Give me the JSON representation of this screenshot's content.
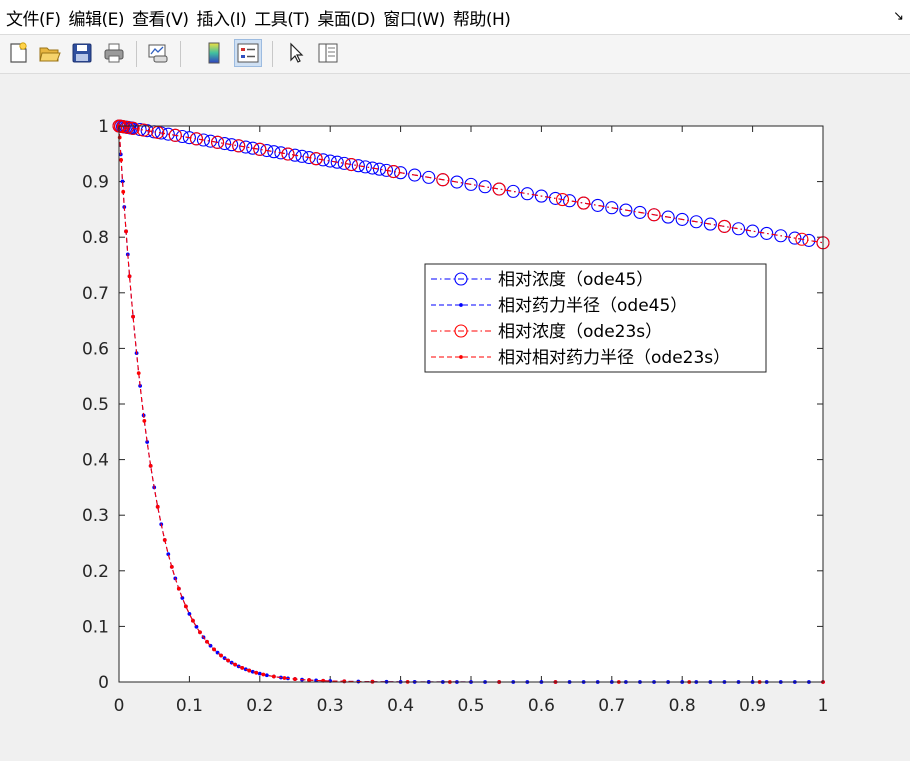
{
  "menu": {
    "items": [
      {
        "id": "file",
        "label": "文件(F)"
      },
      {
        "id": "edit",
        "label": "编辑(E)"
      },
      {
        "id": "view",
        "label": "查看(V)"
      },
      {
        "id": "insert",
        "label": "插入(I)"
      },
      {
        "id": "tools",
        "label": "工具(T)"
      },
      {
        "id": "desktop",
        "label": "桌面(D)"
      },
      {
        "id": "window",
        "label": "窗口(W)"
      },
      {
        "id": "help",
        "label": "帮助(H)"
      }
    ],
    "dock_arrow": "↘"
  },
  "toolbar": {
    "buttons": [
      {
        "name": "new-figure",
        "icon": "new-file-icon"
      },
      {
        "name": "open-file",
        "icon": "open-folder-icon"
      },
      {
        "name": "save",
        "icon": "save-disk-icon"
      },
      {
        "name": "print",
        "icon": "printer-icon"
      },
      {
        "name": "link-plot",
        "icon": "link-plot-icon"
      },
      {
        "name": "colorbar",
        "icon": "colorbar-icon"
      },
      {
        "name": "legend",
        "icon": "legend-icon",
        "active": true
      },
      {
        "name": "edit-plot",
        "icon": "pointer-arrow-icon"
      },
      {
        "name": "property-inspector",
        "icon": "property-panel-icon"
      }
    ]
  },
  "chart_data": {
    "type": "line",
    "title": "",
    "xlabel": "",
    "ylabel": "",
    "xlim": [
      0,
      1
    ],
    "ylim": [
      0,
      1
    ],
    "xticks": [
      "0",
      "0.1",
      "0.2",
      "0.3",
      "0.4",
      "0.5",
      "0.6",
      "0.7",
      "0.8",
      "0.9",
      "1"
    ],
    "yticks": [
      "0",
      "0.1",
      "0.2",
      "0.3",
      "0.4",
      "0.5",
      "0.6",
      "0.7",
      "0.8",
      "0.9",
      "1"
    ],
    "legend_position": "center-right",
    "series": [
      {
        "name": "相对浓度（ode45）",
        "color": "#0000ff",
        "line": "dash-dot",
        "marker": "circle",
        "function": "concentration",
        "x": [
          0,
          0.0025,
          0.005,
          0.0075,
          0.01,
          0.0125,
          0.015,
          0.0175,
          0.02,
          0.03,
          0.04,
          0.05,
          0.06,
          0.07,
          0.08,
          0.09,
          0.1,
          0.11,
          0.12,
          0.13,
          0.14,
          0.15,
          0.16,
          0.17,
          0.18,
          0.19,
          0.2,
          0.21,
          0.22,
          0.23,
          0.24,
          0.25,
          0.26,
          0.27,
          0.28,
          0.29,
          0.3,
          0.31,
          0.32,
          0.33,
          0.34,
          0.35,
          0.36,
          0.37,
          0.38,
          0.39,
          0.4,
          0.42,
          0.44,
          0.46,
          0.48,
          0.5,
          0.52,
          0.54,
          0.56,
          0.58,
          0.6,
          0.62,
          0.64,
          0.66,
          0.68,
          0.7,
          0.72,
          0.74,
          0.76,
          0.78,
          0.8,
          0.82,
          0.84,
          0.86,
          0.88,
          0.9,
          0.92,
          0.94,
          0.96,
          0.98,
          1.0
        ]
      },
      {
        "name": "相对药力半径（ode45）",
        "color": "#0000ff",
        "line": "dashed",
        "marker": "point",
        "function": "radius",
        "x": [
          0,
          0.0025,
          0.005,
          0.0075,
          0.01,
          0.0125,
          0.015,
          0.02,
          0.025,
          0.03,
          0.035,
          0.04,
          0.045,
          0.05,
          0.055,
          0.06,
          0.065,
          0.07,
          0.075,
          0.08,
          0.085,
          0.09,
          0.095,
          0.1,
          0.105,
          0.11,
          0.115,
          0.12,
          0.125,
          0.13,
          0.135,
          0.14,
          0.145,
          0.15,
          0.155,
          0.16,
          0.165,
          0.17,
          0.175,
          0.18,
          0.185,
          0.19,
          0.195,
          0.2,
          0.21,
          0.22,
          0.23,
          0.24,
          0.25,
          0.26,
          0.27,
          0.28,
          0.29,
          0.3,
          0.32,
          0.34,
          0.36,
          0.38,
          0.4,
          0.42,
          0.44,
          0.46,
          0.48,
          0.5,
          0.52,
          0.54,
          0.56,
          0.58,
          0.6,
          0.62,
          0.64,
          0.66,
          0.68,
          0.7,
          0.72,
          0.74,
          0.76,
          0.78,
          0.8,
          0.82,
          0.84,
          0.86,
          0.88,
          0.9,
          0.92,
          0.94,
          0.96,
          0.98,
          1.0
        ]
      },
      {
        "name": "相对浓度（ode23s）",
        "color": "#ff0000",
        "line": "dash-dot",
        "marker": "circle",
        "function": "concentration",
        "x": [
          0,
          0.002,
          0.006,
          0.012,
          0.02,
          0.035,
          0.055,
          0.08,
          0.11,
          0.14,
          0.17,
          0.2,
          0.24,
          0.28,
          0.33,
          0.39,
          0.46,
          0.54,
          0.63,
          0.66,
          0.76,
          0.86,
          0.97,
          1.0
        ]
      },
      {
        "name": "相对相对药力半径（ode23s）",
        "color": "#ff0000",
        "line": "dashed",
        "marker": "point",
        "function": "radius",
        "x": [
          0,
          0.001,
          0.003,
          0.006,
          0.01,
          0.015,
          0.02,
          0.028,
          0.036,
          0.045,
          0.055,
          0.065,
          0.075,
          0.085,
          0.095,
          0.105,
          0.115,
          0.125,
          0.135,
          0.145,
          0.155,
          0.165,
          0.175,
          0.185,
          0.195,
          0.205,
          0.22,
          0.235,
          0.25,
          0.27,
          0.29,
          0.32,
          0.36,
          0.41,
          0.47,
          0.54,
          0.62,
          0.71,
          0.81,
          0.91,
          1.0
        ]
      }
    ]
  }
}
